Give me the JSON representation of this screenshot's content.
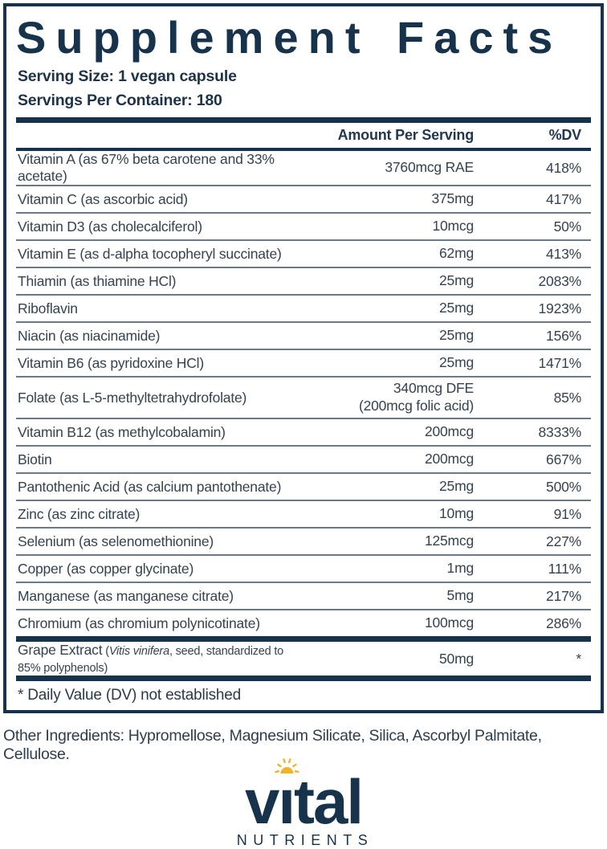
{
  "panel": {
    "title": "Supplement Facts",
    "serving_size": "Serving Size: 1 vegan capsule",
    "servings_per_container": "Servings Per Container: 180"
  },
  "table": {
    "header": {
      "amount": "Amount Per Serving",
      "dv": "%DV"
    },
    "rows": [
      {
        "name": "Vitamin A (as 67% beta carotene and 33% acetate)",
        "amount": "3760mcg RAE",
        "dv": "418%"
      },
      {
        "name": "Vitamin C (as ascorbic acid)",
        "amount": "375mg",
        "dv": "417%"
      },
      {
        "name": "Vitamin D3 (as cholecalciferol)",
        "amount": "10mcg",
        "dv": "50%"
      },
      {
        "name": "Vitamin E (as d-alpha tocopheryl succinate)",
        "amount": "62mg",
        "dv": "413%"
      },
      {
        "name": "Thiamin (as thiamine HCl)",
        "amount": "25mg",
        "dv": "2083%"
      },
      {
        "name": "Riboflavin",
        "amount": "25mg",
        "dv": "1923%"
      },
      {
        "name": "Niacin (as niacinamide)",
        "amount": "25mg",
        "dv": "156%"
      },
      {
        "name": "Vitamin B6 (as pyridoxine HCl)",
        "amount": "25mg",
        "dv": "1471%"
      },
      {
        "name": "Folate (as L-5-methyltetrahydrofolate)",
        "amount": "340mcg DFE",
        "amount2": "(200mcg folic acid)",
        "dv": "85%"
      },
      {
        "name": "Vitamin B12 (as methylcobalamin)",
        "amount": "200mcg",
        "dv": "8333%"
      },
      {
        "name": "Biotin",
        "amount": "200mcg",
        "dv": "667%"
      },
      {
        "name": "Pantothenic Acid (as calcium pantothenate)",
        "amount": "25mg",
        "dv": "500%"
      },
      {
        "name": "Zinc (as zinc citrate)",
        "amount": "10mg",
        "dv": "91%"
      },
      {
        "name": "Selenium (as selenomethionine)",
        "amount": "125mcg",
        "dv": "227%"
      },
      {
        "name": "Copper (as copper glycinate)",
        "amount": "1mg",
        "dv": "111%"
      },
      {
        "name": "Manganese (as manganese citrate)",
        "amount": "5mg",
        "dv": "217%"
      },
      {
        "name": "Chromium (as chromium polynicotinate)",
        "amount": "100mcg",
        "dv": "286%"
      }
    ]
  },
  "special_row": {
    "name": "Grape Extract",
    "note_before": " (",
    "note_italic": "Vitis vinifera",
    "note_after": ", seed, standardized to 85% polyphenols)",
    "amount": "50mg",
    "dv": "*"
  },
  "footnote": "* Daily Value (DV) not established",
  "other_ingredients": "Other Ingredients: Hypromellose, Magnesium Silicate, Silica, Ascorbyl Palmitate, Cellulose.",
  "logo": {
    "brand_word": "vital",
    "brand_pre": "v",
    "brand_i": "ı",
    "brand_post": "tal",
    "subtext": "NUTRIENTS",
    "colors": {
      "navy": "#17324b",
      "gold": "#f0b429"
    }
  }
}
